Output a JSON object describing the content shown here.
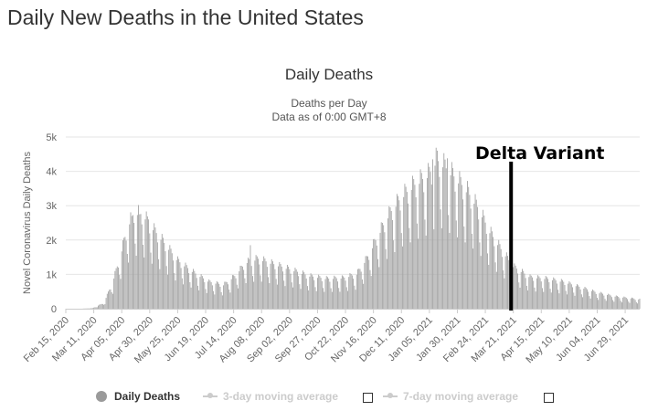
{
  "page_title": "Daily New Deaths in the United States",
  "chart_data": {
    "type": "bar",
    "title": "Daily Deaths",
    "subtitle_lines": [
      "Deaths per Day",
      "Data as of 0:00 GMT+8"
    ],
    "ylabel": "Novel Coronavirus Daily Deaths",
    "xlabel": "",
    "ylim": [
      0,
      5000
    ],
    "y_ticks": [
      0,
      1000,
      2000,
      3000,
      4000,
      5000
    ],
    "y_tick_labels": [
      "0",
      "1k",
      "2k",
      "3k",
      "4k",
      "5k"
    ],
    "x_tick_labels": [
      "Feb 15, 2020",
      "Mar 11, 2020",
      "Apr 05, 2020",
      "Apr 30, 2020",
      "May 25, 2020",
      "Jun 19, 2020",
      "Jul 14, 2020",
      "Aug 08, 2020",
      "Sep 02, 2020",
      "Sep 27, 2020",
      "Oct 22, 2020",
      "Nov 16, 2020",
      "Dec 11, 2020",
      "Jan 05, 2021",
      "Jan 30, 2021",
      "Feb 24, 2021",
      "Mar 21, 2021",
      "Apr 15, 2021",
      "May 10, 2021",
      "Jun 04, 2021",
      "Jun 29, 2021"
    ],
    "x_start": "Feb 15, 2020",
    "x_end": "Jul 12, 2021",
    "grid": true,
    "bar_color": "#a3a3a3",
    "series": [
      {
        "name": "Daily Deaths",
        "keypoints": [
          [
            "2020-02-15",
            0
          ],
          [
            "2020-02-29",
            0
          ],
          [
            "2020-03-10",
            15
          ],
          [
            "2020-03-20",
            150
          ],
          [
            "2020-03-28",
            700
          ],
          [
            "2020-04-04",
            1400
          ],
          [
            "2020-04-10",
            2100
          ],
          [
            "2020-04-16",
            2500
          ],
          [
            "2020-04-24",
            2450
          ],
          [
            "2020-05-01",
            2150
          ],
          [
            "2020-05-12",
            1750
          ],
          [
            "2020-05-25",
            1250
          ],
          [
            "2020-06-08",
            950
          ],
          [
            "2020-06-22",
            700
          ],
          [
            "2020-07-05",
            620
          ],
          [
            "2020-07-15",
            850
          ],
          [
            "2020-07-25",
            1200
          ],
          [
            "2020-08-05",
            1300
          ],
          [
            "2020-08-20",
            1150
          ],
          [
            "2020-09-05",
            1000
          ],
          [
            "2020-09-20",
            850
          ],
          [
            "2020-10-05",
            780
          ],
          [
            "2020-10-20",
            800
          ],
          [
            "2020-11-01",
            900
          ],
          [
            "2020-11-10",
            1300
          ],
          [
            "2020-11-20",
            1900
          ],
          [
            "2020-12-01",
            2500
          ],
          [
            "2020-12-11",
            2900
          ],
          [
            "2020-12-22",
            3200
          ],
          [
            "2021-01-05",
            3500
          ],
          [
            "2021-01-12",
            3900
          ],
          [
            "2021-01-20",
            3650
          ],
          [
            "2021-01-30",
            3350
          ],
          [
            "2021-02-08",
            3050
          ],
          [
            "2021-02-18",
            2600
          ],
          [
            "2021-02-28",
            2000
          ],
          [
            "2021-03-10",
            1550
          ],
          [
            "2021-03-21",
            1100
          ],
          [
            "2021-04-05",
            820
          ],
          [
            "2021-04-20",
            780
          ],
          [
            "2021-05-05",
            700
          ],
          [
            "2021-05-20",
            560
          ],
          [
            "2021-06-04",
            420
          ],
          [
            "2021-06-20",
            320
          ],
          [
            "2021-07-12",
            240
          ]
        ],
        "peak_values": [
          [
            "2020-04-14",
            2700
          ],
          [
            "2020-04-21",
            2750
          ],
          [
            "2020-04-29",
            2600
          ],
          [
            "2020-07-29",
            1850
          ],
          [
            "2021-01-08",
            4350
          ],
          [
            "2021-01-13",
            4300
          ],
          [
            "2021-01-21",
            4380
          ]
        ]
      }
    ],
    "annotation": {
      "label": "Delta Variant",
      "date": "2021-03-19"
    }
  },
  "legend": {
    "items": [
      {
        "label": "Daily Deaths",
        "active": true,
        "color": "#9a9a9a"
      },
      {
        "label": "3-day moving average",
        "active": false,
        "color": "#cccccc"
      },
      {
        "label": "7-day moving average",
        "active": false,
        "color": "#cccccc"
      }
    ]
  }
}
